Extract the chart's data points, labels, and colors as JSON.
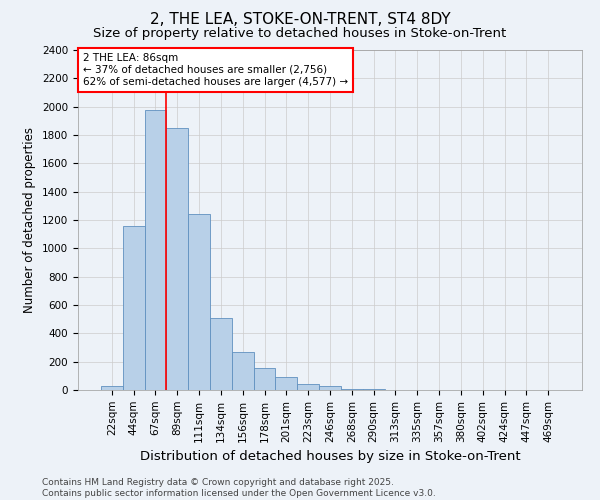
{
  "title1": "2, THE LEA, STOKE-ON-TRENT, ST4 8DY",
  "title2": "Size of property relative to detached houses in Stoke-on-Trent",
  "xlabel": "Distribution of detached houses by size in Stoke-on-Trent",
  "ylabel": "Number of detached properties",
  "categories": [
    "22sqm",
    "44sqm",
    "67sqm",
    "89sqm",
    "111sqm",
    "134sqm",
    "156sqm",
    "178sqm",
    "201sqm",
    "223sqm",
    "246sqm",
    "268sqm",
    "290sqm",
    "313sqm",
    "335sqm",
    "357sqm",
    "380sqm",
    "402sqm",
    "424sqm",
    "447sqm",
    "469sqm"
  ],
  "values": [
    25,
    1160,
    1975,
    1850,
    1240,
    510,
    270,
    155,
    95,
    45,
    30,
    5,
    5,
    3,
    2,
    2,
    2,
    2,
    2,
    2,
    2
  ],
  "bar_color": "#b8d0e8",
  "bar_edge_color": "#6090c0",
  "vline_x_idx": 3,
  "vline_color": "red",
  "annotation_text": "2 THE LEA: 86sqm\n← 37% of detached houses are smaller (2,756)\n62% of semi-detached houses are larger (4,577) →",
  "annotation_box_color": "white",
  "annotation_box_edge_color": "red",
  "ylim": [
    0,
    2400
  ],
  "yticks": [
    0,
    200,
    400,
    600,
    800,
    1000,
    1200,
    1400,
    1600,
    1800,
    2000,
    2200,
    2400
  ],
  "grid_color": "#cccccc",
  "bg_color": "#edf2f8",
  "footnote": "Contains HM Land Registry data © Crown copyright and database right 2025.\nContains public sector information licensed under the Open Government Licence v3.0.",
  "title1_fontsize": 11,
  "title2_fontsize": 9.5,
  "xlabel_fontsize": 9.5,
  "ylabel_fontsize": 8.5,
  "tick_fontsize": 7.5,
  "footnote_fontsize": 6.5
}
